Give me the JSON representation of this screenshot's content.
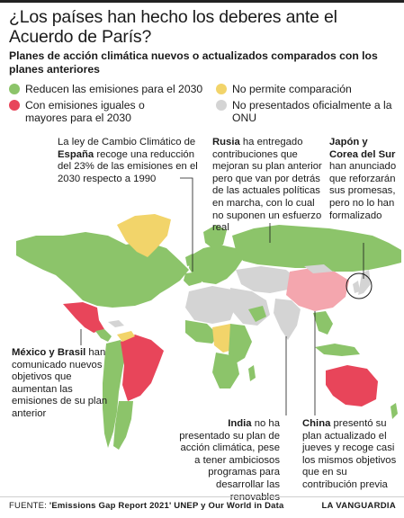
{
  "title": "¿Los países han hecho los deberes ante el Acuerdo de París?",
  "subtitle": "Planes de acción climática nuevos o actualizados comparados con los planes anteriores",
  "colors": {
    "reduce": "#8cc46a",
    "same_or_more": "#e8455a",
    "no_comparison": "#f2d46a",
    "not_presented": "#d4d4d4",
    "china_highlight": "#f4a6ae",
    "ocean": "#ffffff"
  },
  "legend": [
    {
      "key": "reduce",
      "label": "Reducen las emisiones para el 2030"
    },
    {
      "key": "no_comparison",
      "label": "No permite comparación"
    },
    {
      "key": "same_or_more",
      "label": "Con emisiones iguales o mayores para el 2030"
    },
    {
      "key": "not_presented",
      "label": "No presentados oficialmente a la ONU"
    }
  ],
  "annotations": {
    "spain": {
      "pre": "La ley de Cambio Climático de ",
      "bold": "España",
      "post": " recoge una reducción del 23% de las emisiones en el 2030 respecto a 1990"
    },
    "russia": {
      "bold": "Rusia",
      "post": " ha entregado contribuciones que mejoran su plan anterior pero que van por detrás de las actuales políticas en marcha, con lo cual no suponen un esfuerzo real"
    },
    "japan_korea": {
      "bold": "Japón y Corea del Sur",
      "post": " han anunciado que reforzarán sus promesas, pero no lo han formalizado"
    },
    "mexico_brazil": {
      "bold": "México y Brasil",
      "post": " han comunicado nuevos objetivos que aumentan las emisiones de su plan anterior"
    },
    "india": {
      "bold": "India",
      "post": " no ha presentado su plan de acción climática, pese a tener ambiciosos programas para desarrollar las renovables"
    },
    "china": {
      "bold": "China",
      "post": " presentó su plan actualizado el jueves y recoge casi los mismos objetivos que en su contribución previa"
    }
  },
  "footer": {
    "source_prefix": "FUENTE: ",
    "source_bold": "'Emissions Gap Report 2021' UNEP y Our World in Data",
    "brand": "LA VANGUARDIA"
  }
}
